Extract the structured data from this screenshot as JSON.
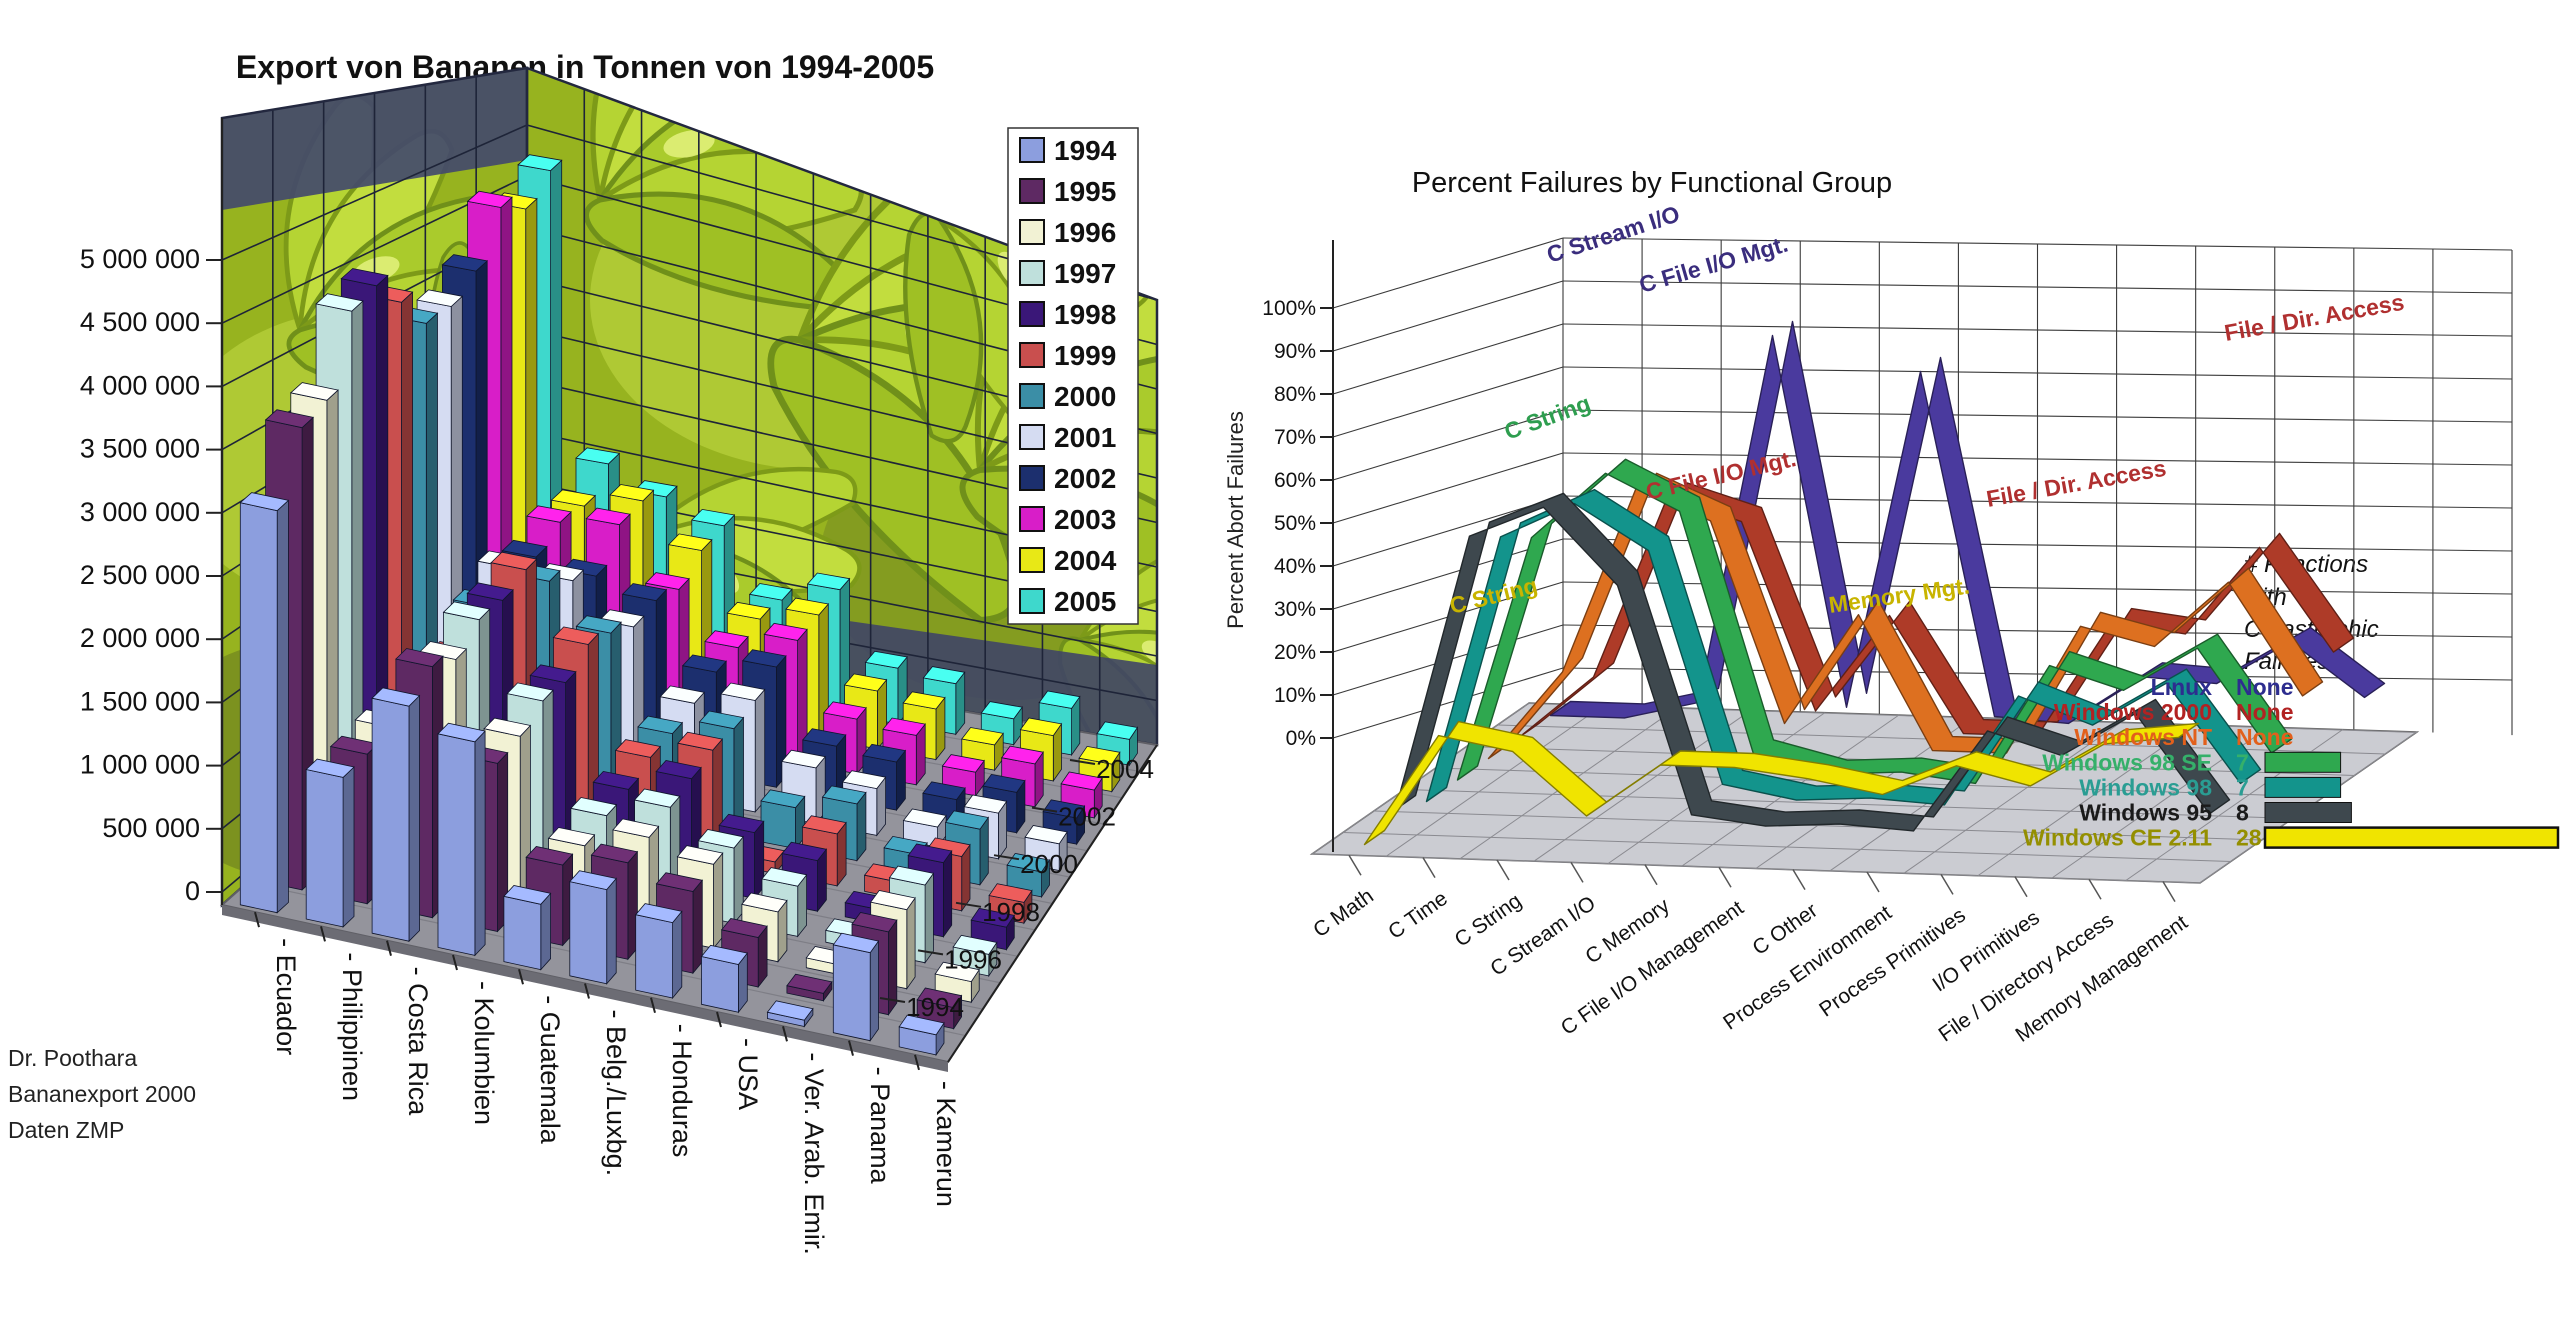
{
  "chart_data": [
    {
      "type": "bar3d",
      "title": "Export von Bananen in Tonnen von 1994-2005",
      "categories": [
        "- Ecuador",
        "- Philippinen",
        "- Costa Rica",
        "- Kolumbien",
        "- Guatemala",
        "- Belg./Luxbg.",
        "- Honduras",
        "- USA",
        "- Ver. Arab. Emir.",
        "- Panama",
        "- Kamerun"
      ],
      "y_tick_labels": [
        "0",
        "500 000",
        "1 000 000",
        "1 500 000",
        "2 000 000",
        "2 500 000",
        "3 000 000",
        "3 500 000",
        "4 000 000",
        "4 500 000",
        "5 000 000"
      ],
      "ylim": [
        0,
        5000000
      ],
      "depth_tick_labels": [
        "1994",
        "1996",
        "1998",
        "2000",
        "2002",
        "2004"
      ],
      "series": [
        {
          "name": "1994",
          "color": "#8c9ede",
          "values": [
            3200000,
            1190000,
            1870000,
            1700000,
            520000,
            750000,
            600000,
            380000,
            50000,
            700000,
            160000
          ]
        },
        {
          "name": "1995",
          "color": "#5e2963",
          "values": [
            3740000,
            1210000,
            2030000,
            1360000,
            650000,
            780000,
            660000,
            400000,
            60000,
            670000,
            170000
          ]
        },
        {
          "name": "1996",
          "color": "#f2f2d4",
          "values": [
            3840000,
            1260000,
            1930000,
            1410000,
            620000,
            800000,
            690000,
            410000,
            80000,
            650000,
            170000
          ]
        },
        {
          "name": "1997",
          "color": "#bfe0dc",
          "values": [
            4460000,
            1150000,
            2100000,
            1530000,
            680000,
            860000,
            630000,
            420000,
            100000,
            650000,
            180000
          ]
        },
        {
          "name": "1998",
          "color": "#3a1778",
          "values": [
            4560000,
            1150000,
            2100000,
            1510000,
            710000,
            910000,
            560000,
            430000,
            120000,
            630000,
            190000
          ]
        },
        {
          "name": "1999",
          "color": "#c94f4e",
          "values": [
            4300000,
            1320000,
            2200000,
            1660000,
            790000,
            960000,
            100000,
            450000,
            140000,
            470000,
            180000
          ]
        },
        {
          "name": "2000",
          "color": "#3b8ea6",
          "values": [
            3990000,
            1600000,
            1930000,
            1580000,
            800000,
            950000,
            360000,
            500000,
            160000,
            490000,
            220000
          ]
        },
        {
          "name": "2001",
          "color": "#d5dcf2",
          "values": [
            4010000,
            1770000,
            1760000,
            1450000,
            870000,
            1000000,
            500000,
            420000,
            180000,
            410000,
            240000
          ]
        },
        {
          "name": "2002",
          "color": "#1c2f6e",
          "values": [
            4200000,
            1690000,
            1620000,
            1500000,
            950000,
            1100000,
            480000,
            440000,
            200000,
            370000,
            240000
          ]
        },
        {
          "name": "2003",
          "color": "#d81ec8",
          "values": [
            4660000,
            1830000,
            1910000,
            1410000,
            970000,
            1140000,
            510000,
            460000,
            220000,
            400000,
            260000
          ]
        },
        {
          "name": "2004",
          "color": "#e8e816",
          "values": [
            4520000,
            1800000,
            1950000,
            1580000,
            1030000,
            1170000,
            550000,
            480000,
            240000,
            430000,
            260000
          ]
        },
        {
          "name": "2005",
          "color": "#3ed8cc",
          "values": [
            4760000,
            2020000,
            1800000,
            1620000,
            1000000,
            1200000,
            540000,
            490000,
            250000,
            450000,
            250000
          ]
        }
      ],
      "source_note": [
        "Dr. Poothara",
        "Bananexport 2000",
        "Daten ZMP"
      ]
    },
    {
      "type": "line3d",
      "title": "Percent Failures by Functional Group",
      "ylabel": "Percent Abort Failures",
      "y_tick_labels": [
        "0%",
        "10%",
        "20%",
        "30%",
        "40%",
        "50%",
        "60%",
        "70%",
        "80%",
        "90%",
        "100%"
      ],
      "ylim": [
        0,
        100
      ],
      "categories": [
        "C Math",
        "C Time",
        "C String",
        "C Stream I/O",
        "C Memory",
        "C File I/O Management",
        "C Other",
        "Process Environment",
        "Process Primitives",
        "I/O Primitives",
        "File / Directory Access",
        "Memory Management"
      ],
      "legend_header_lines": [
        "# Functions",
        "with",
        "Catastrophic",
        "Failures"
      ],
      "series": [
        {
          "name": "Linux",
          "color": "#4a3a9e",
          "text_color": "#2d2d8f",
          "catastrophic": "None",
          "values": [
            0,
            0,
            4,
            87,
            4,
            80,
            3,
            2,
            13,
            12,
            22,
            10
          ]
        },
        {
          "name": "Windows 2000",
          "color": "#ae3b28",
          "text_color": "#b22222",
          "catastrophic": "None",
          "values": [
            0,
            14,
            55,
            50,
            8,
            30,
            4,
            4,
            30,
            28,
            48,
            25
          ]
        },
        {
          "name": "Windows NT",
          "color": "#dd7020",
          "text_color": "#e2601c",
          "catastrophic": "None",
          "values": [
            0,
            20,
            62,
            55,
            10,
            35,
            5,
            5,
            34,
            30,
            45,
            20
          ]
        },
        {
          "name": "Windows 98 SE",
          "color": "#2fa84f",
          "text_color": "#35b06a",
          "catastrophic": "7",
          "values": [
            0,
            55,
            70,
            62,
            8,
            4,
            5,
            3,
            30,
            25,
            35,
            12
          ]
        },
        {
          "name": "Windows 98",
          "color": "#13948c",
          "text_color": "#2a9d93",
          "catastrophic": "7",
          "values": [
            0,
            60,
            68,
            58,
            6,
            3,
            4,
            3,
            28,
            22,
            32,
            10
          ]
        },
        {
          "name": "Windows 95",
          "color": "#3e484e",
          "text_color": "#1a1a1a",
          "catastrophic": "8",
          "values": [
            3,
            65,
            72,
            55,
            4,
            2,
            3,
            2,
            25,
            20,
            30,
            8
          ]
        },
        {
          "name": "Windows CE 2.11",
          "color": "#f0e400",
          "text_color": "#948f00",
          "catastrophic": "28",
          "values": [
            0,
            25,
            22,
            8,
            20,
            20,
            18,
            15,
            22,
            18,
            28,
            30
          ]
        }
      ],
      "annotations": [
        {
          "text": "C String",
          "color": "#c8b400"
        },
        {
          "text": "C String",
          "color": "#2e9e4f"
        },
        {
          "text": "C Stream I/O",
          "color": "#3a2d7d"
        },
        {
          "text": "C File I/O Mgt.",
          "color": "#3a2d7d"
        },
        {
          "text": "C File I/O Mgt.",
          "color": "#b03030"
        },
        {
          "text": "Memory Mgt.",
          "color": "#c8b400"
        },
        {
          "text": "File / Dir. Access",
          "color": "#b03030"
        },
        {
          "text": "File / Dir. Access",
          "color": "#b03030"
        }
      ]
    }
  ]
}
